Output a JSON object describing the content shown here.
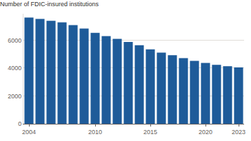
{
  "chart_data": {
    "type": "bar",
    "title": "Number of FDIC-insured institutions",
    "x": [
      2004,
      2005,
      2006,
      2007,
      2008,
      2009,
      2010,
      2011,
      2012,
      2013,
      2014,
      2015,
      2016,
      2017,
      2018,
      2019,
      2020,
      2021,
      2022,
      2023
    ],
    "values": [
      7630,
      7525,
      7400,
      7280,
      7085,
      6840,
      6530,
      6290,
      6095,
      5875,
      5640,
      5340,
      5115,
      4920,
      4720,
      4520,
      4375,
      4235,
      4135,
      4050
    ],
    "color": "#1e5b99",
    "xlim": [
      2003.5,
      2023.5
    ],
    "xticks": [
      2004,
      2010,
      2015,
      2020,
      2023
    ],
    "ylim": [
      0,
      7900
    ],
    "yticks": [
      0,
      2000,
      4000,
      6000
    ],
    "grid": true
  }
}
